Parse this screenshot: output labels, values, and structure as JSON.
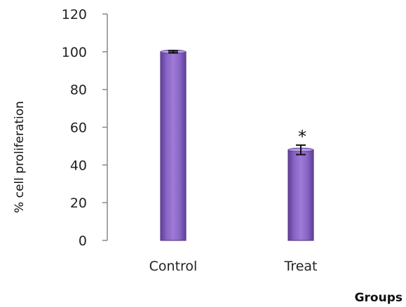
{
  "chart_data": {
    "type": "bar",
    "categories": [
      "Control",
      "Treat"
    ],
    "values": [
      100,
      48
    ],
    "error": [
      0.5,
      2.5
    ],
    "annotations": [
      "",
      "*"
    ],
    "xlabel": "Groups",
    "ylabel": "% cell proliferation",
    "ylim": [
      0,
      120
    ],
    "yticks": [
      0,
      20,
      40,
      60,
      80,
      100,
      120
    ],
    "grid": false,
    "bar_color": "#8e6bc4",
    "bar_edge_color": "#5a3b8f"
  }
}
